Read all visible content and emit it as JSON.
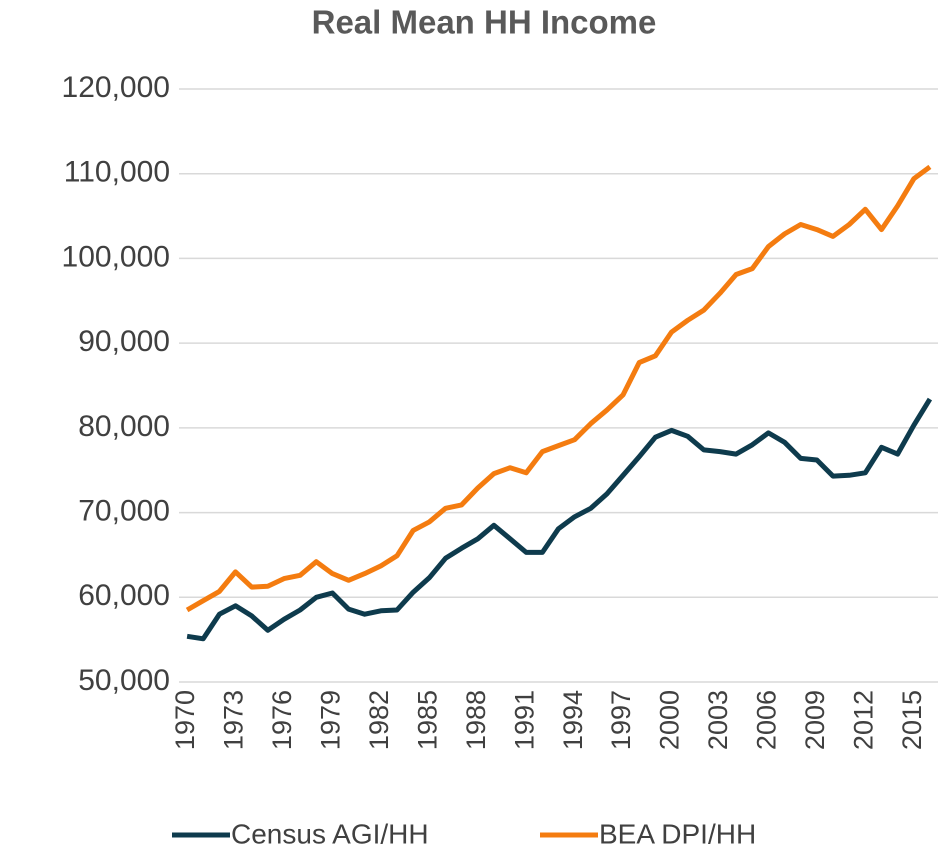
{
  "chart_data": {
    "type": "line",
    "title": "Real Mean HH Income",
    "categories": [
      "1970",
      null,
      null,
      "1973",
      null,
      null,
      "1976",
      null,
      null,
      "1979",
      null,
      null,
      "1982",
      null,
      null,
      "1985",
      null,
      null,
      "1988",
      null,
      null,
      "1991",
      null,
      null,
      "1994",
      null,
      null,
      "1997",
      null,
      null,
      "2000",
      null,
      null,
      "2003",
      null,
      null,
      "2006",
      null,
      null,
      "2009",
      null,
      null,
      "2012",
      null,
      null,
      "2015",
      null
    ],
    "series": [
      {
        "name": "Census AGI/HH",
        "color": "#0e3b4d",
        "values": [
          55400,
          55100,
          58000,
          59000,
          57800,
          56100,
          57400,
          58500,
          60000,
          60500,
          58600,
          58000,
          58400,
          58500,
          60600,
          62300,
          64600,
          65800,
          66900,
          68500,
          66900,
          65300,
          65300,
          68100,
          69500,
          70500,
          72200,
          74400,
          76600,
          78900,
          79700,
          79000,
          77400,
          77200,
          76900,
          78000,
          79400,
          78300,
          76400,
          76200,
          74300,
          74400,
          74700,
          77700,
          76900,
          80300,
          83400
        ]
      },
      {
        "name": "BEA DPI/HH",
        "color": "#f47c10",
        "values": [
          58500,
          59600,
          60700,
          63000,
          61200,
          61300,
          62200,
          62600,
          64200,
          62800,
          62000,
          62800,
          63700,
          64900,
          67900,
          68900,
          70500,
          70900,
          72900,
          74600,
          75300,
          74700,
          77200,
          77900,
          78600,
          80500,
          82100,
          83900,
          87700,
          88500,
          91300,
          92700,
          93900,
          95900,
          98100,
          98800,
          101400,
          102900,
          104000,
          103400,
          102600,
          104000,
          105800,
          103400,
          106200,
          109400,
          110800
        ]
      }
    ],
    "ylim": [
      50000,
      120000
    ],
    "yticks": [
      {
        "value": 50000,
        "label": "50,000"
      },
      {
        "value": 60000,
        "label": "60,000"
      },
      {
        "value": 70000,
        "label": "70,000"
      },
      {
        "value": 80000,
        "label": "80,000"
      },
      {
        "value": 90000,
        "label": "90,000"
      },
      {
        "value": 100000,
        "label": "100,000"
      },
      {
        "value": 110000,
        "label": "110,000"
      },
      {
        "value": 120000,
        "label": "120,000"
      }
    ],
    "grid": true,
    "legend": "bottom"
  }
}
